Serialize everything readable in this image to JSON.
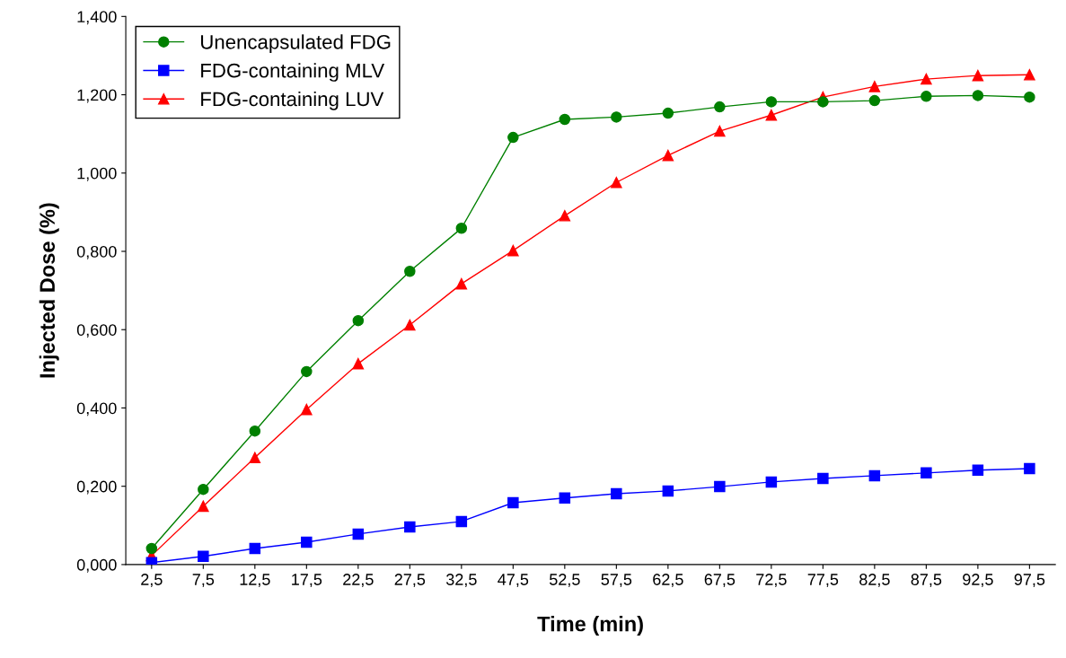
{
  "chart_data": {
    "type": "line",
    "xlabel": "Time (min)",
    "ylabel": "Injected Dose (%)",
    "categories": [
      "2,5",
      "7,5",
      "12,5",
      "17,5",
      "22,5",
      "27,5",
      "32,5",
      "47,5",
      "52,5",
      "57,5",
      "62,5",
      "67,5",
      "72,5",
      "77,5",
      "82,5",
      "87,5",
      "92,5",
      "97,5"
    ],
    "series": [
      {
        "name": "Unencapsulated FDG",
        "color": "#008000",
        "marker": "circle",
        "values": [
          0.041,
          0.192,
          0.341,
          0.493,
          0.623,
          0.749,
          0.859,
          1.091,
          1.137,
          1.143,
          1.153,
          1.169,
          1.182,
          1.182,
          1.185,
          1.196,
          1.198,
          1.194
        ]
      },
      {
        "name": "FDG-containing MLV",
        "color": "#0000ff",
        "marker": "square",
        "values": [
          0.005,
          0.021,
          0.041,
          0.057,
          0.078,
          0.096,
          0.11,
          0.158,
          0.17,
          0.181,
          0.188,
          0.199,
          0.211,
          0.22,
          0.227,
          0.234,
          0.241,
          0.245
        ]
      },
      {
        "name": "FDG-containing LUV",
        "color": "#ff0000",
        "marker": "triangle",
        "values": [
          0.023,
          0.149,
          0.273,
          0.396,
          0.513,
          0.612,
          0.717,
          0.802,
          0.891,
          0.976,
          1.045,
          1.107,
          1.148,
          1.194,
          1.221,
          1.24,
          1.249,
          1.251
        ]
      }
    ],
    "ylim": [
      0,
      1.4
    ],
    "yticks": [
      {
        "value": 0,
        "label": "0,000"
      },
      {
        "value": 0.2,
        "label": "0,200"
      },
      {
        "value": 0.4,
        "label": "0,400"
      },
      {
        "value": 0.6,
        "label": "0,600"
      },
      {
        "value": 0.8,
        "label": "0,800"
      },
      {
        "value": 1.0,
        "label": "1,000"
      },
      {
        "value": 1.2,
        "label": "1,200"
      },
      {
        "value": 1.4,
        "label": "1,400"
      }
    ],
    "grid": false,
    "legend": "top left",
    "line_style": "solid"
  }
}
